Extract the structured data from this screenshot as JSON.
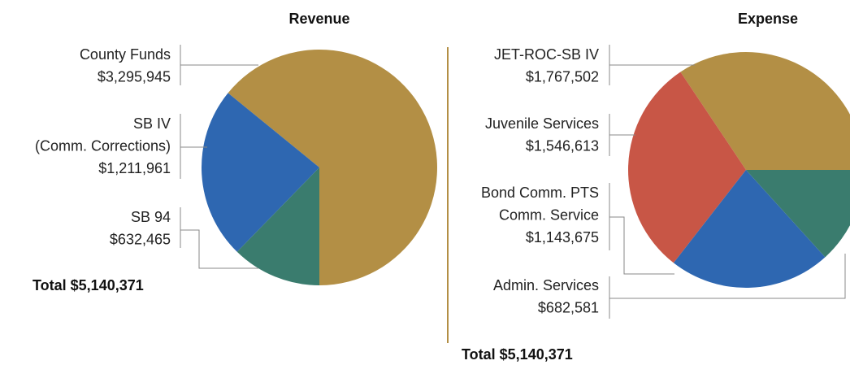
{
  "chart_data": [
    {
      "type": "pie",
      "title": "Revenue",
      "categories": [
        [
          "County Funds"
        ],
        [
          "SB IV",
          "(Comm. Corrections)"
        ],
        [
          "SB 94"
        ]
      ],
      "values": [
        3295945,
        1211961,
        632465
      ],
      "value_labels": [
        "$3,295,945",
        "$1,211,961",
        "$632,465"
      ],
      "colors": [
        "#b38f45",
        "#2e67b1",
        "#3a7c6e"
      ],
      "total": "Total $5,140,371"
    },
    {
      "type": "pie",
      "title": "Expense",
      "categories": [
        [
          "JET-ROC-SB IV"
        ],
        [
          "Juvenile Services"
        ],
        [
          "Bond Comm.  PTS",
          "Comm. Service"
        ],
        [
          "Admin. Services"
        ]
      ],
      "values": [
        1767502,
        1546613,
        1143675,
        682581
      ],
      "value_labels": [
        "$1,767,502",
        "$1,546,613",
        "$1,143,675",
        "$682,581"
      ],
      "colors": [
        "#b38f45",
        "#c85646",
        "#2e67b1",
        "#3a7c6e"
      ],
      "total": "Total $5,140,371"
    }
  ]
}
